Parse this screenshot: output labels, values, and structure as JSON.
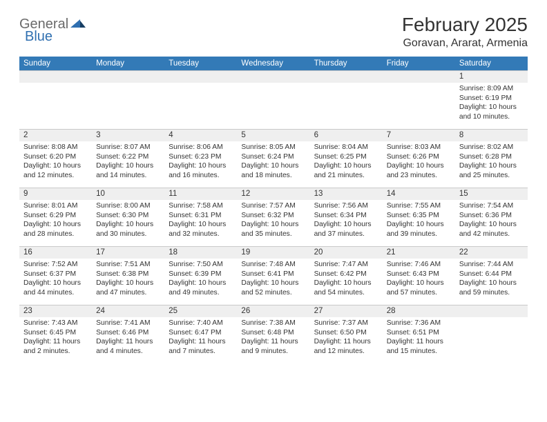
{
  "logo": {
    "general": "General",
    "blue": "Blue"
  },
  "title": "February 2025",
  "location": "Goravan, Ararat, Armenia",
  "colors": {
    "header_bg": "#337ab7",
    "header_fg": "#ffffff",
    "daynum_bg": "#efefef",
    "border": "#c9c9c9",
    "text": "#333333",
    "logo_gray": "#6a6a6a",
    "logo_blue": "#2f6fb0"
  },
  "weekdays": [
    "Sunday",
    "Monday",
    "Tuesday",
    "Wednesday",
    "Thursday",
    "Friday",
    "Saturday"
  ],
  "weeks": [
    [
      {
        "day": "",
        "lines": []
      },
      {
        "day": "",
        "lines": []
      },
      {
        "day": "",
        "lines": []
      },
      {
        "day": "",
        "lines": []
      },
      {
        "day": "",
        "lines": []
      },
      {
        "day": "",
        "lines": []
      },
      {
        "day": "1",
        "lines": [
          "Sunrise: 8:09 AM",
          "Sunset: 6:19 PM",
          "Daylight: 10 hours and 10 minutes."
        ]
      }
    ],
    [
      {
        "day": "2",
        "lines": [
          "Sunrise: 8:08 AM",
          "Sunset: 6:20 PM",
          "Daylight: 10 hours and 12 minutes."
        ]
      },
      {
        "day": "3",
        "lines": [
          "Sunrise: 8:07 AM",
          "Sunset: 6:22 PM",
          "Daylight: 10 hours and 14 minutes."
        ]
      },
      {
        "day": "4",
        "lines": [
          "Sunrise: 8:06 AM",
          "Sunset: 6:23 PM",
          "Daylight: 10 hours and 16 minutes."
        ]
      },
      {
        "day": "5",
        "lines": [
          "Sunrise: 8:05 AM",
          "Sunset: 6:24 PM",
          "Daylight: 10 hours and 18 minutes."
        ]
      },
      {
        "day": "6",
        "lines": [
          "Sunrise: 8:04 AM",
          "Sunset: 6:25 PM",
          "Daylight: 10 hours and 21 minutes."
        ]
      },
      {
        "day": "7",
        "lines": [
          "Sunrise: 8:03 AM",
          "Sunset: 6:26 PM",
          "Daylight: 10 hours and 23 minutes."
        ]
      },
      {
        "day": "8",
        "lines": [
          "Sunrise: 8:02 AM",
          "Sunset: 6:28 PM",
          "Daylight: 10 hours and 25 minutes."
        ]
      }
    ],
    [
      {
        "day": "9",
        "lines": [
          "Sunrise: 8:01 AM",
          "Sunset: 6:29 PM",
          "Daylight: 10 hours and 28 minutes."
        ]
      },
      {
        "day": "10",
        "lines": [
          "Sunrise: 8:00 AM",
          "Sunset: 6:30 PM",
          "Daylight: 10 hours and 30 minutes."
        ]
      },
      {
        "day": "11",
        "lines": [
          "Sunrise: 7:58 AM",
          "Sunset: 6:31 PM",
          "Daylight: 10 hours and 32 minutes."
        ]
      },
      {
        "day": "12",
        "lines": [
          "Sunrise: 7:57 AM",
          "Sunset: 6:32 PM",
          "Daylight: 10 hours and 35 minutes."
        ]
      },
      {
        "day": "13",
        "lines": [
          "Sunrise: 7:56 AM",
          "Sunset: 6:34 PM",
          "Daylight: 10 hours and 37 minutes."
        ]
      },
      {
        "day": "14",
        "lines": [
          "Sunrise: 7:55 AM",
          "Sunset: 6:35 PM",
          "Daylight: 10 hours and 39 minutes."
        ]
      },
      {
        "day": "15",
        "lines": [
          "Sunrise: 7:54 AM",
          "Sunset: 6:36 PM",
          "Daylight: 10 hours and 42 minutes."
        ]
      }
    ],
    [
      {
        "day": "16",
        "lines": [
          "Sunrise: 7:52 AM",
          "Sunset: 6:37 PM",
          "Daylight: 10 hours and 44 minutes."
        ]
      },
      {
        "day": "17",
        "lines": [
          "Sunrise: 7:51 AM",
          "Sunset: 6:38 PM",
          "Daylight: 10 hours and 47 minutes."
        ]
      },
      {
        "day": "18",
        "lines": [
          "Sunrise: 7:50 AM",
          "Sunset: 6:39 PM",
          "Daylight: 10 hours and 49 minutes."
        ]
      },
      {
        "day": "19",
        "lines": [
          "Sunrise: 7:48 AM",
          "Sunset: 6:41 PM",
          "Daylight: 10 hours and 52 minutes."
        ]
      },
      {
        "day": "20",
        "lines": [
          "Sunrise: 7:47 AM",
          "Sunset: 6:42 PM",
          "Daylight: 10 hours and 54 minutes."
        ]
      },
      {
        "day": "21",
        "lines": [
          "Sunrise: 7:46 AM",
          "Sunset: 6:43 PM",
          "Daylight: 10 hours and 57 minutes."
        ]
      },
      {
        "day": "22",
        "lines": [
          "Sunrise: 7:44 AM",
          "Sunset: 6:44 PM",
          "Daylight: 10 hours and 59 minutes."
        ]
      }
    ],
    [
      {
        "day": "23",
        "lines": [
          "Sunrise: 7:43 AM",
          "Sunset: 6:45 PM",
          "Daylight: 11 hours and 2 minutes."
        ]
      },
      {
        "day": "24",
        "lines": [
          "Sunrise: 7:41 AM",
          "Sunset: 6:46 PM",
          "Daylight: 11 hours and 4 minutes."
        ]
      },
      {
        "day": "25",
        "lines": [
          "Sunrise: 7:40 AM",
          "Sunset: 6:47 PM",
          "Daylight: 11 hours and 7 minutes."
        ]
      },
      {
        "day": "26",
        "lines": [
          "Sunrise: 7:38 AM",
          "Sunset: 6:48 PM",
          "Daylight: 11 hours and 9 minutes."
        ]
      },
      {
        "day": "27",
        "lines": [
          "Sunrise: 7:37 AM",
          "Sunset: 6:50 PM",
          "Daylight: 11 hours and 12 minutes."
        ]
      },
      {
        "day": "28",
        "lines": [
          "Sunrise: 7:36 AM",
          "Sunset: 6:51 PM",
          "Daylight: 11 hours and 15 minutes."
        ]
      },
      {
        "day": "",
        "lines": []
      }
    ]
  ]
}
